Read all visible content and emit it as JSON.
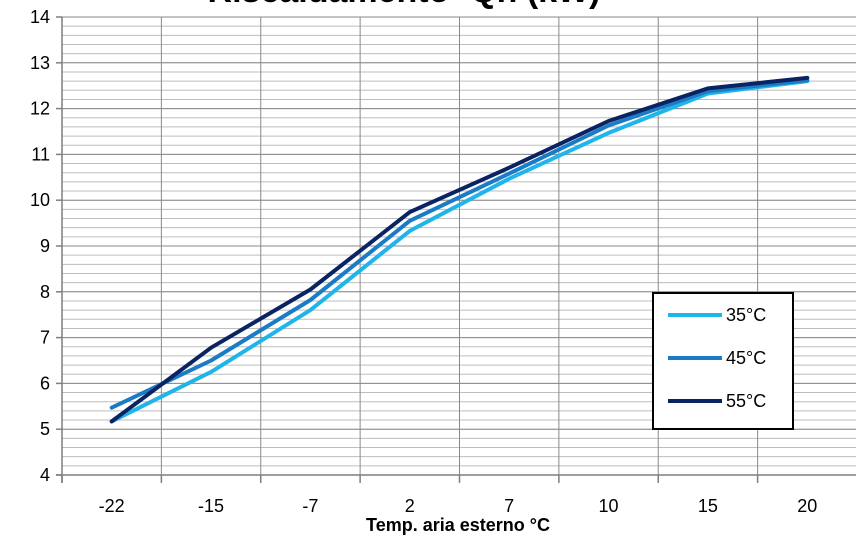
{
  "chart_data": {
    "type": "line",
    "title": "Riscaldamento- Qh (kW)",
    "xlabel": "Temp. aria esterno °C",
    "ylabel": "",
    "categories": [
      "-22",
      "-15",
      "-7",
      "2",
      "7",
      "10",
      "15",
      "20"
    ],
    "ylim": [
      4,
      14
    ],
    "yticks": [
      "4",
      "5",
      "6",
      "7",
      "8",
      "9",
      "10",
      "11",
      "12",
      "13",
      "14"
    ],
    "grid": true,
    "legend_position": "right",
    "series": [
      {
        "name": "35°C",
        "color": "#1fb4ea",
        "values": [
          5.17,
          6.25,
          7.6,
          9.33,
          10.47,
          11.47,
          12.33,
          12.6
        ]
      },
      {
        "name": "45°C",
        "color": "#1b7cc5",
        "values": [
          5.47,
          6.5,
          7.82,
          9.55,
          10.58,
          11.63,
          12.38,
          12.62
        ]
      },
      {
        "name": "55°C",
        "color": "#0a2362",
        "values": [
          5.17,
          6.78,
          8.05,
          9.74,
          10.71,
          11.73,
          12.44,
          12.67
        ]
      }
    ]
  }
}
